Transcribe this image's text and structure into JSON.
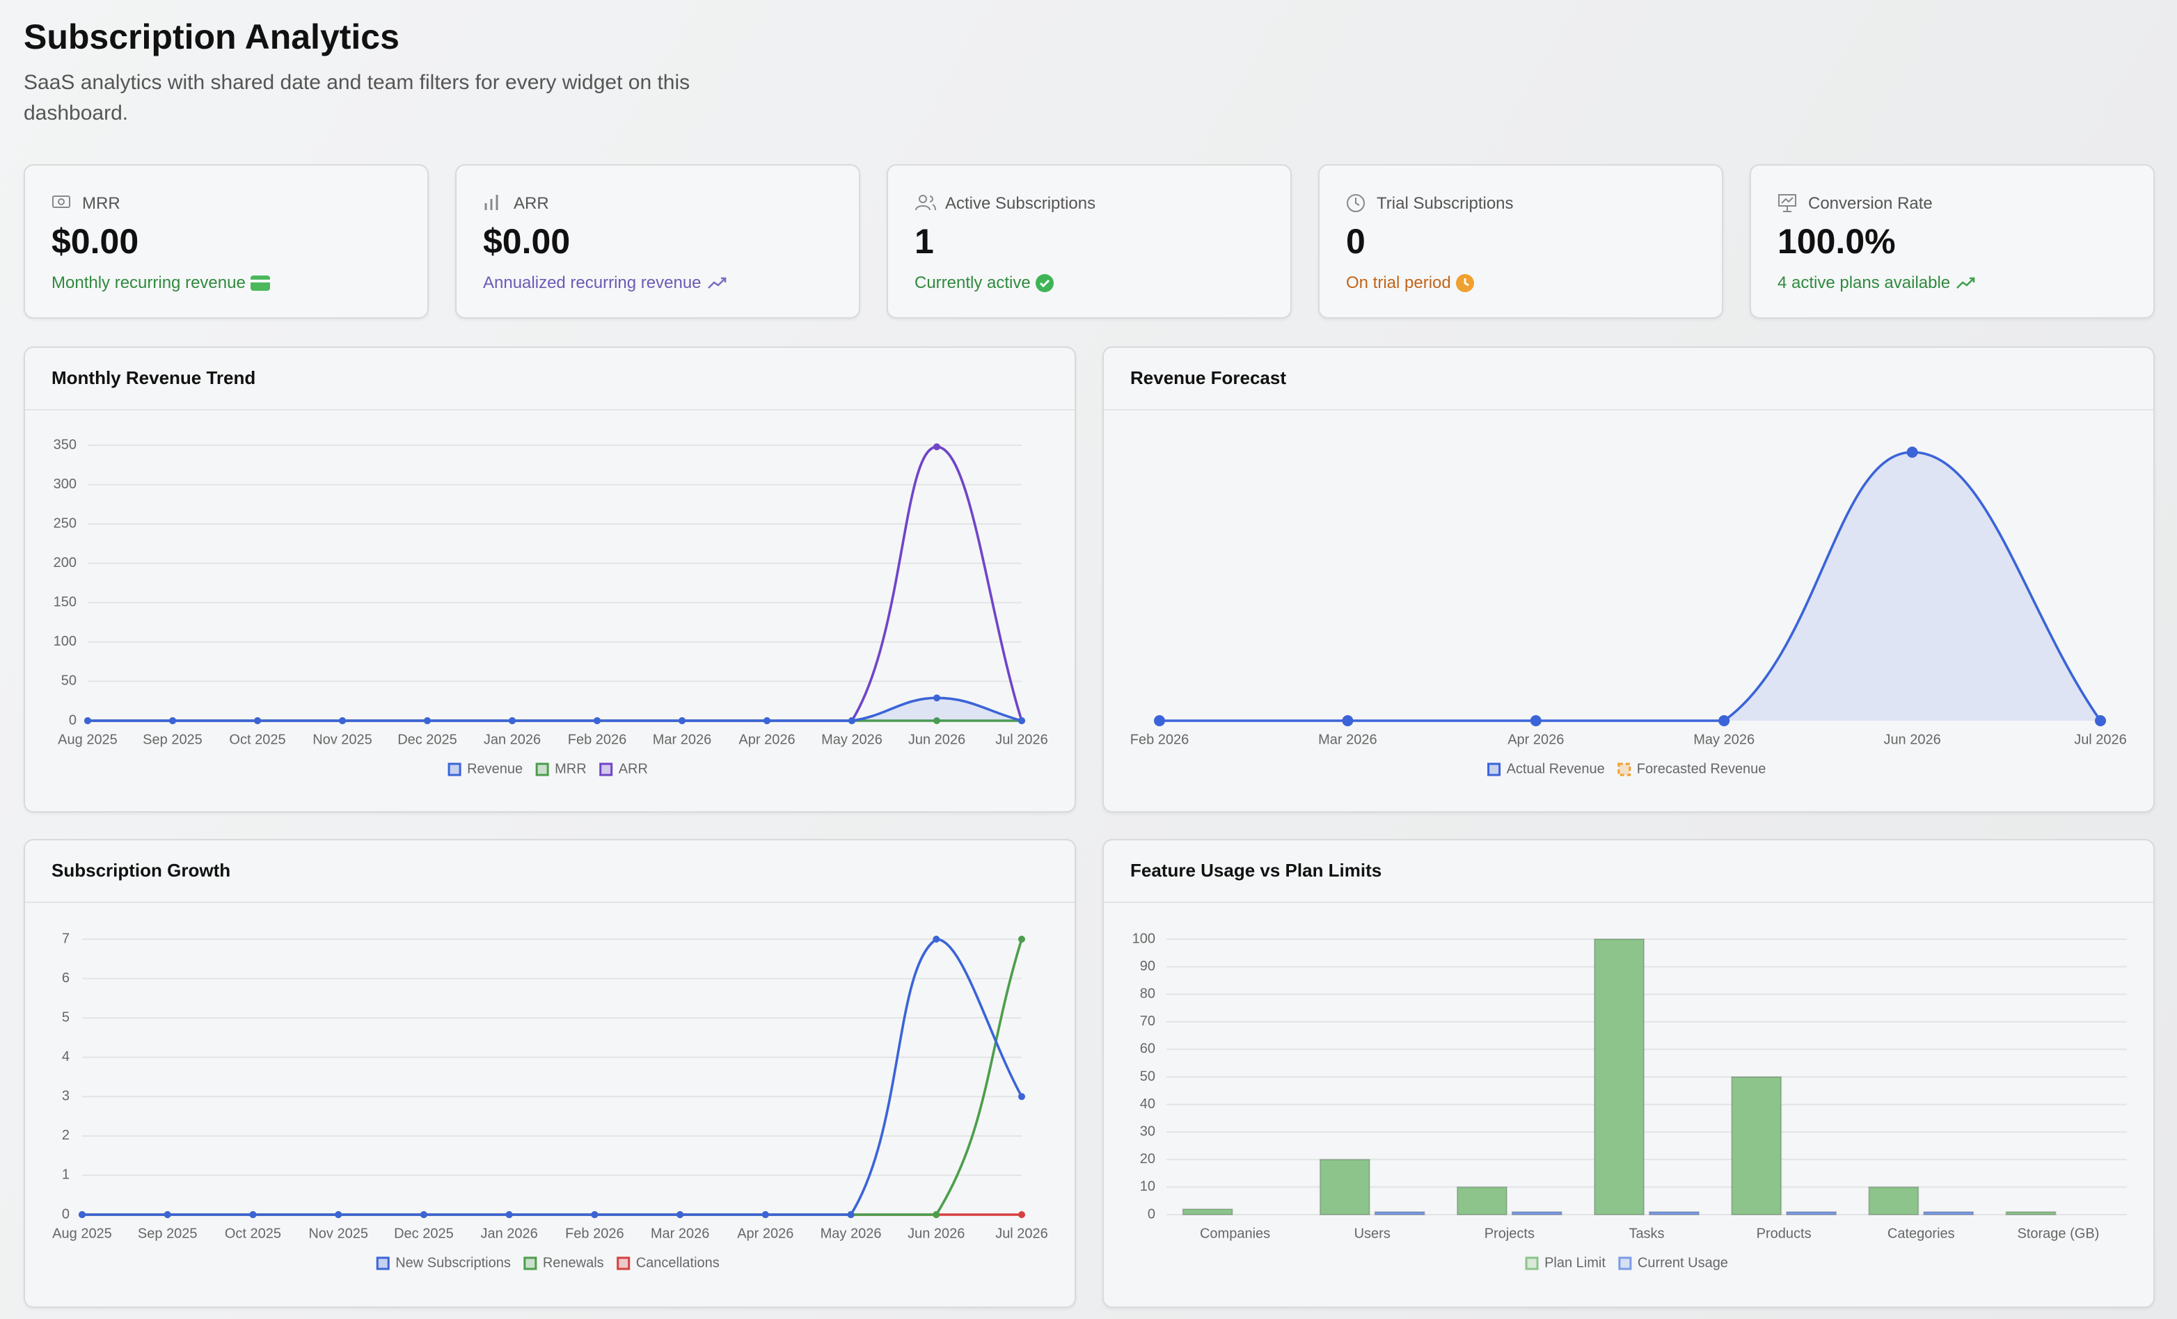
{
  "header": {
    "title": "Subscription Analytics",
    "subtitle": "SaaS analytics with shared date and team filters for every widget on this dashboard."
  },
  "kpis": [
    {
      "label": "MRR",
      "value": "$0.00",
      "note": "Monthly recurring revenue"
    },
    {
      "label": "ARR",
      "value": "$0.00",
      "note": "Annualized recurring revenue"
    },
    {
      "label": "Active Subscriptions",
      "value": "1",
      "note": "Currently active"
    },
    {
      "label": "Trial Subscriptions",
      "value": "0",
      "note": "On trial period"
    },
    {
      "label": "Conversion Rate",
      "value": "100.0%",
      "note": "4 active plans available"
    }
  ],
  "chart_data": [
    {
      "type": "line",
      "title": "Monthly Revenue Trend",
      "categories": [
        "Aug 2025",
        "Sep 2025",
        "Oct 2025",
        "Nov 2025",
        "Dec 2025",
        "Jan 2026",
        "Feb 2026",
        "Mar 2026",
        "Apr 2026",
        "May 2026",
        "Jun 2026",
        "Jul 2026"
      ],
      "ylim": [
        0,
        350
      ],
      "yticks": [
        0,
        50,
        100,
        150,
        200,
        250,
        300,
        350
      ],
      "grid": true,
      "series": [
        {
          "name": "Revenue",
          "color": "#3b64d8",
          "fill": true,
          "values": [
            0,
            0,
            0,
            0,
            0,
            0,
            0,
            0,
            0,
            0,
            29,
            0
          ]
        },
        {
          "name": "MRR",
          "color": "#4c9e4c",
          "values": [
            0,
            0,
            0,
            0,
            0,
            0,
            0,
            0,
            0,
            0,
            0,
            0
          ]
        },
        {
          "name": "ARR",
          "color": "#6f45c9",
          "values": [
            0,
            0,
            0,
            0,
            0,
            0,
            0,
            0,
            0,
            0,
            348,
            0
          ]
        }
      ]
    },
    {
      "type": "line",
      "title": "Revenue Forecast",
      "categories": [
        "Feb 2026",
        "Mar 2026",
        "Apr 2026",
        "May 2026",
        "Jun 2026",
        "Jul 2026"
      ],
      "series": [
        {
          "name": "Actual Revenue",
          "color": "#3b64d8",
          "fill": true,
          "values": [
            0,
            0,
            0,
            0,
            29,
            0
          ]
        },
        {
          "name": "Forecasted Revenue",
          "color": "#f0a030",
          "dashed": true,
          "values": [
            null,
            null,
            null,
            null,
            null,
            null
          ]
        }
      ]
    },
    {
      "type": "line",
      "title": "Subscription Growth",
      "categories": [
        "Aug 2025",
        "Sep 2025",
        "Oct 2025",
        "Nov 2025",
        "Dec 2025",
        "Jan 2026",
        "Feb 2026",
        "Mar 2026",
        "Apr 2026",
        "May 2026",
        "Jun 2026",
        "Jul 2026"
      ],
      "ylim": [
        0,
        7
      ],
      "yticks": [
        0,
        1,
        2,
        3,
        4,
        5,
        6,
        7
      ],
      "grid": true,
      "series": [
        {
          "name": "New Subscriptions",
          "color": "#3b64d8",
          "values": [
            0,
            0,
            0,
            0,
            0,
            0,
            0,
            0,
            0,
            0,
            7,
            3
          ]
        },
        {
          "name": "Renewals",
          "color": "#4c9e4c",
          "values": [
            0,
            0,
            0,
            0,
            0,
            0,
            0,
            0,
            0,
            0,
            0,
            7
          ]
        },
        {
          "name": "Cancellations",
          "color": "#d84040",
          "values": [
            0,
            0,
            0,
            0,
            0,
            0,
            0,
            0,
            0,
            0,
            0,
            0
          ]
        }
      ]
    },
    {
      "type": "bar",
      "title": "Feature Usage vs Plan Limits",
      "categories": [
        "Companies",
        "Users",
        "Projects",
        "Tasks",
        "Products",
        "Categories",
        "Storage (GB)"
      ],
      "ylim": [
        0,
        100
      ],
      "yticks": [
        0,
        10,
        20,
        30,
        40,
        50,
        60,
        70,
        80,
        90,
        100
      ],
      "grid": true,
      "series": [
        {
          "name": "Plan Limit",
          "color": "#8cc48c",
          "values": [
            2,
            20,
            10,
            100,
            50,
            10,
            1
          ]
        },
        {
          "name": "Current Usage",
          "color": "#7b9ce8",
          "values": [
            0,
            1,
            1,
            1,
            1,
            1,
            0
          ]
        }
      ]
    }
  ]
}
